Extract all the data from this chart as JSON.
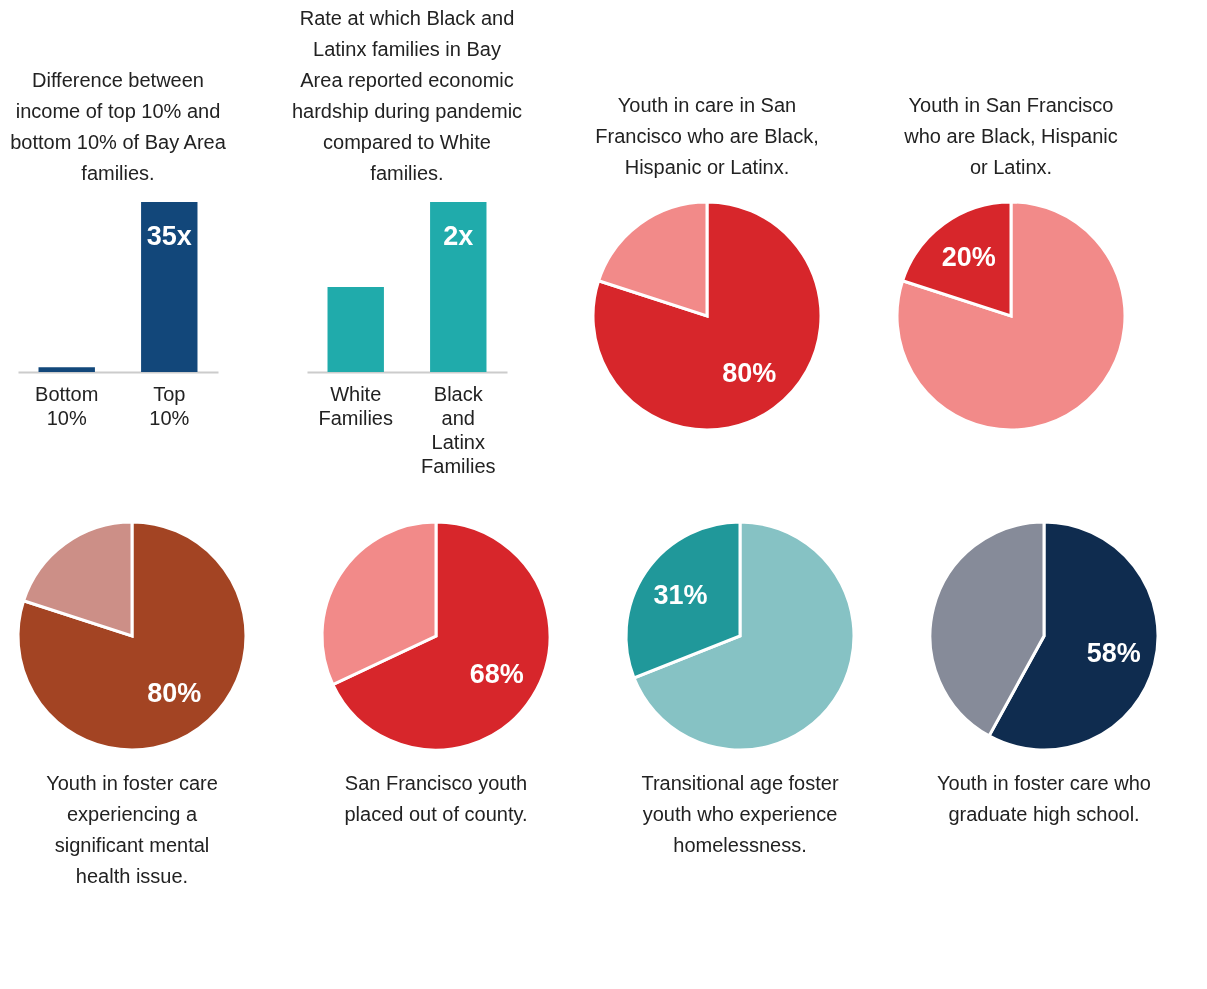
{
  "chart_data": [
    {
      "type": "bar",
      "title": "Difference between income of top 10% and bottom 10% of Bay Area families.",
      "categories": [
        "Bottom 10%",
        "Top 10%"
      ],
      "values": [
        1,
        35
      ],
      "value_labels": [
        null,
        "35x"
      ],
      "color": "#12477a",
      "tick_labels": "x"
    },
    {
      "type": "bar",
      "title": "Rate at which Black and Latinx families in Bay Area reported economic hardship during pandemic compared to White families.",
      "categories": [
        "White Families",
        "Black and Latinx Families"
      ],
      "values": [
        1,
        2
      ],
      "value_labels": [
        null,
        "2x"
      ],
      "color": "#20abab",
      "tick_labels": "x"
    },
    {
      "type": "pie",
      "title": "Youth in care in San Francisco who are Black, Hispanic or Latinx.",
      "values": [
        80,
        20
      ],
      "colors": [
        "#d7262b",
        "#f28a89"
      ],
      "value_labels": [
        "80%",
        null
      ]
    },
    {
      "type": "pie",
      "title": "Youth in San Francisco who are Black, Hispanic or Latinx.",
      "values": [
        80,
        20
      ],
      "colors": [
        "#f28a89",
        "#d7262b"
      ],
      "value_labels": [
        null,
        "20%"
      ]
    },
    {
      "type": "pie",
      "title": "Youth in foster care experiencing a significant mental health issue.",
      "values": [
        80,
        20
      ],
      "colors": [
        "#a34423",
        "#cc8f87"
      ],
      "value_labels": [
        "80%",
        null
      ]
    },
    {
      "type": "pie",
      "title": "San Francisco youth placed out of county.",
      "values": [
        68,
        32
      ],
      "colors": [
        "#d7262b",
        "#f28a89"
      ],
      "value_labels": [
        "68%",
        null
      ]
    },
    {
      "type": "pie",
      "title": "Transitional age foster youth who experience homelessness.",
      "values": [
        69,
        31
      ],
      "colors": [
        "#86c2c4",
        "#20989a"
      ],
      "value_labels": [
        null,
        "31%"
      ]
    },
    {
      "type": "pie",
      "title": "Youth in foster care who graduate high school.",
      "values": [
        58,
        42
      ],
      "colors": [
        "#0f2c4f",
        "#868b99"
      ],
      "value_labels": [
        "58%",
        null
      ]
    }
  ]
}
